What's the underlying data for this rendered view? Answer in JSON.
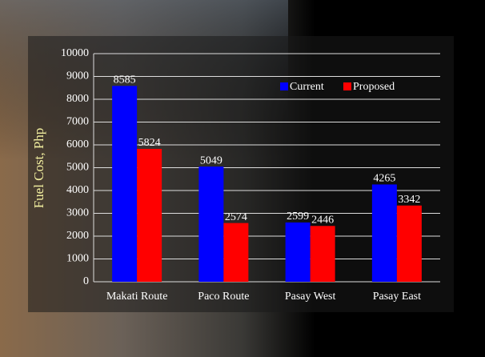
{
  "chart_data": {
    "type": "bar",
    "y_label": "Fuel Cost, Php",
    "categories": [
      "Makati Route",
      "Paco Route",
      "Pasay West",
      "Pasay East"
    ],
    "series": [
      {
        "name": "Current",
        "color": "#0000ff",
        "values": [
          8585,
          5049,
          2599,
          4265
        ]
      },
      {
        "name": "Proposed",
        "color": "#ff0000",
        "values": [
          5824,
          2574,
          2446,
          3342
        ]
      }
    ],
    "ylim": [
      0,
      10000
    ],
    "yticks": [
      0,
      1000,
      2000,
      3000,
      4000,
      5000,
      6000,
      7000,
      8000,
      9000,
      10000
    ],
    "grid": true
  }
}
